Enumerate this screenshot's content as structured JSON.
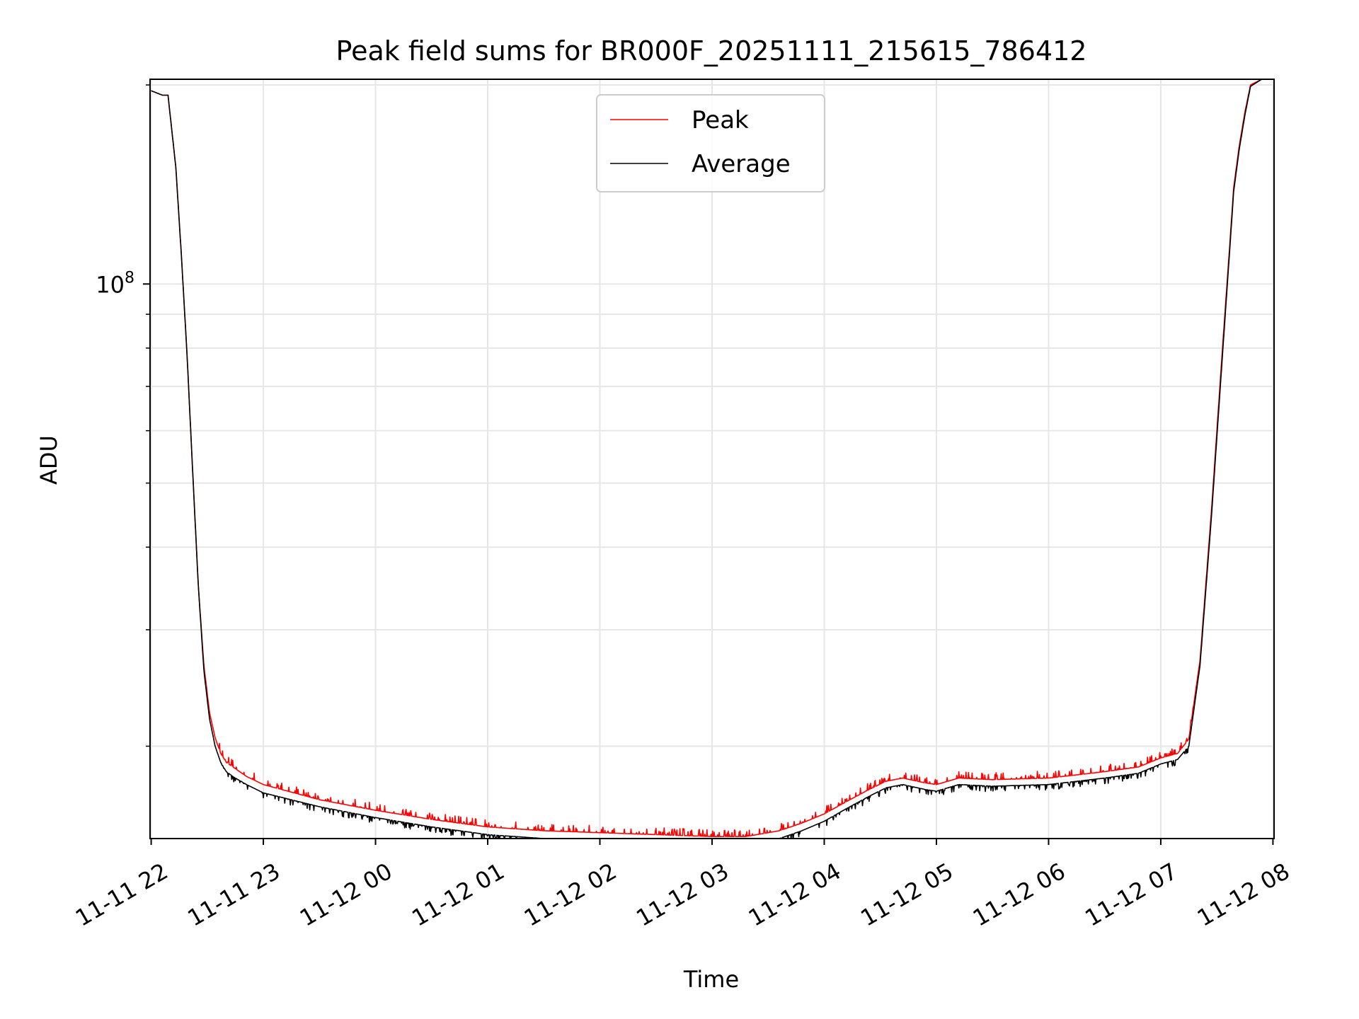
{
  "chart_data": {
    "type": "line",
    "title": "Peak field sums for BR000F_20251111_215615_786412",
    "xlabel": "Time",
    "ylabel": "ADU",
    "yscale": "log",
    "ylim": [
      14500000,
      204000000
    ],
    "xlim": [
      -0.01,
      10.01
    ],
    "x_ticks": [
      {
        "value": 0,
        "label": "11-11 22"
      },
      {
        "value": 1,
        "label": "11-11 23"
      },
      {
        "value": 2,
        "label": "11-12 00"
      },
      {
        "value": 3,
        "label": "11-12 01"
      },
      {
        "value": 4,
        "label": "11-12 02"
      },
      {
        "value": 5,
        "label": "11-12 03"
      },
      {
        "value": 6,
        "label": "11-12 04"
      },
      {
        "value": 7,
        "label": "11-12 05"
      },
      {
        "value": 8,
        "label": "11-12 06"
      },
      {
        "value": 9,
        "label": "11-12 07"
      },
      {
        "value": 10,
        "label": "11-12 08"
      }
    ],
    "x_unit_note": "x values are hours since 11-11 22:00",
    "y_major_ticks": [
      {
        "value": 100000000,
        "base": "10",
        "exp": "8"
      }
    ],
    "y_minor_ticks": [
      20000000,
      30000000,
      40000000,
      50000000,
      60000000,
      70000000,
      80000000,
      90000000,
      200000000
    ],
    "grid": true,
    "legend": {
      "position": "top-center",
      "entries": [
        "Peak",
        "Average"
      ]
    },
    "series": [
      {
        "name": "Peak",
        "color": "#ff0000",
        "x": [
          0.0,
          0.1,
          0.15,
          0.22,
          0.27,
          0.32,
          0.37,
          0.42,
          0.47,
          0.52,
          0.57,
          0.62,
          0.67,
          0.75,
          0.85,
          1.0,
          1.5,
          2.0,
          2.5,
          3.0,
          3.5,
          4.0,
          4.5,
          5.0,
          5.3,
          5.6,
          5.8,
          6.0,
          6.2,
          6.4,
          6.55,
          6.7,
          6.9,
          7.0,
          7.2,
          7.5,
          8.0,
          8.5,
          8.8,
          9.0,
          9.15,
          9.25,
          9.35,
          9.45,
          9.55,
          9.62,
          9.65,
          9.7,
          9.75,
          9.8,
          9.9,
          10.0
        ],
        "y": [
          196000000,
          193000000,
          193000000,
          150000000,
          110000000,
          78000000,
          52000000,
          35000000,
          26500000,
          22500000,
          20600000,
          19500000,
          18900000,
          18500000,
          18000000,
          17500000,
          16600000,
          16000000,
          15500000,
          15100000,
          14900000,
          14800000,
          14700000,
          14600000,
          14600000,
          14900000,
          15300000,
          15800000,
          16500000,
          17200000,
          17700000,
          17900000,
          17600000,
          17500000,
          17900000,
          17800000,
          17900000,
          18300000,
          18600000,
          19200000,
          19500000,
          20500000,
          27000000,
          45000000,
          80000000,
          118000000,
          140000000,
          162000000,
          182000000,
          200000000,
          204000000,
          204000000
        ]
      },
      {
        "name": "Average",
        "color": "#000000",
        "x": [
          0.0,
          0.1,
          0.15,
          0.22,
          0.27,
          0.32,
          0.37,
          0.42,
          0.47,
          0.52,
          0.57,
          0.62,
          0.67,
          0.75,
          0.85,
          1.0,
          1.5,
          2.0,
          2.5,
          3.0,
          3.5,
          4.0,
          4.5,
          5.0,
          5.3,
          5.6,
          5.8,
          6.0,
          6.2,
          6.4,
          6.55,
          6.7,
          6.9,
          7.0,
          7.2,
          7.5,
          8.0,
          8.5,
          8.8,
          9.0,
          9.15,
          9.25,
          9.35,
          9.45,
          9.55,
          9.62,
          9.65,
          9.7,
          9.75,
          9.8,
          9.9,
          10.0
        ],
        "y": [
          196000000,
          193000000,
          193000000,
          150000000,
          110000000,
          78000000,
          52000000,
          35000000,
          26000000,
          22000000,
          20000000,
          18900000,
          18300000,
          17900000,
          17500000,
          17000000,
          16200000,
          15600000,
          15100000,
          14700000,
          14500000,
          14400000,
          14300000,
          14250000,
          14250000,
          14500000,
          14900000,
          15400000,
          16100000,
          16800000,
          17300000,
          17500000,
          17200000,
          17100000,
          17500000,
          17400000,
          17500000,
          17900000,
          18200000,
          18800000,
          19100000,
          20000000,
          26500000,
          44000000,
          78000000,
          116000000,
          138000000,
          160000000,
          180000000,
          199000000,
          204000000,
          204000000
        ]
      }
    ]
  }
}
